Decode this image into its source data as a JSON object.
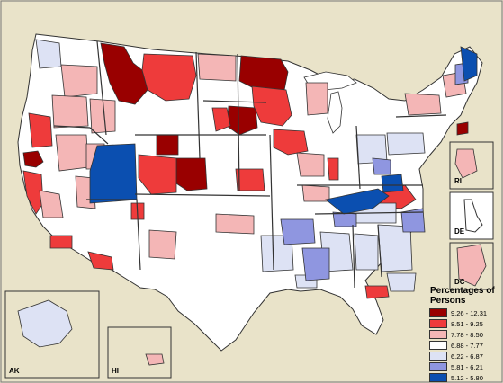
{
  "map": {
    "colors": {
      "background": "#e9e3c9",
      "water": "#ffffff",
      "border": "#333333"
    },
    "regions_by_class": {
      "c1_darkred": "9.26 - 12.31",
      "c2_red": "8.51 - 9.25",
      "c3_pink": "7.78 - 8.50",
      "c4_white": "6.88 - 7.77",
      "c5_lavender": "6.22 - 6.87",
      "c6_periwinkle": "5.81 - 6.21",
      "c7_blue": "5.12 - 5.80"
    }
  },
  "legend": {
    "title": "Percentages of Persons",
    "items": [
      {
        "label": "9.26 - 12.31",
        "color": "#990000"
      },
      {
        "label": "8.51 - 9.25",
        "color": "#ee3b3b"
      },
      {
        "label": "7.78 - 8.50",
        "color": "#f4b6b6"
      },
      {
        "label": "6.88 - 7.77",
        "color": "#ffffff"
      },
      {
        "label": "6.22 - 6.87",
        "color": "#dde2f4"
      },
      {
        "label": "5.81 - 6.21",
        "color": "#8f96e0"
      },
      {
        "label": "5.12 - 5.80",
        "color": "#0b4fb0"
      }
    ]
  },
  "insets": {
    "ri": "RI",
    "de": "DE",
    "dc": "DC",
    "ak": "AK",
    "hi": "HI"
  }
}
